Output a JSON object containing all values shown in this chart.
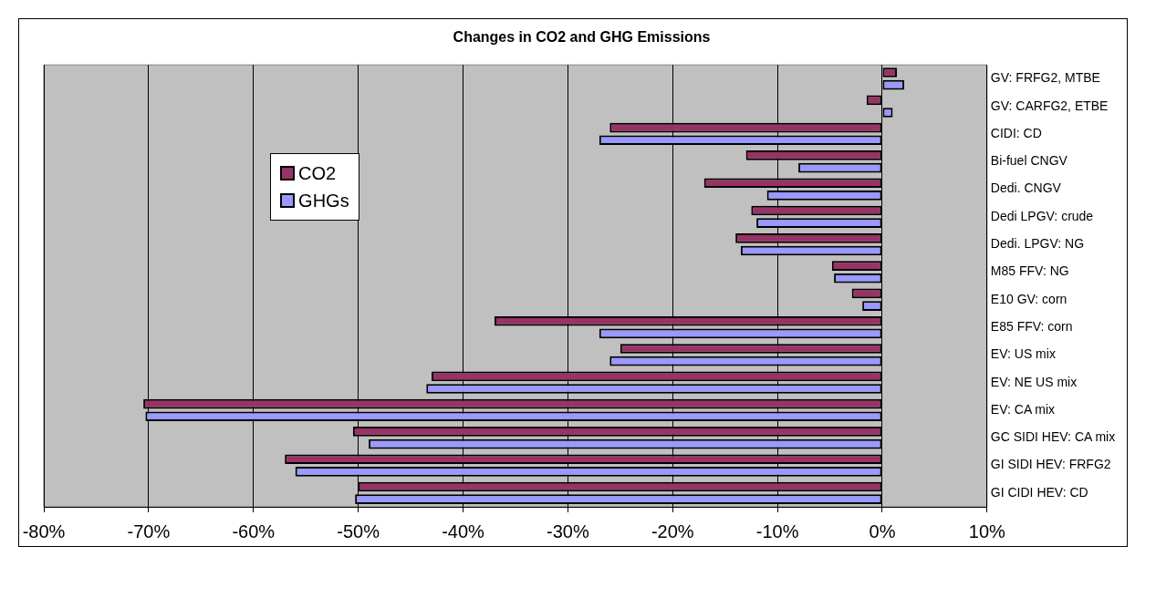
{
  "chart_data": {
    "type": "bar",
    "orientation": "horizontal",
    "title": "Changes in CO2 and GHG Emissions",
    "categories": [
      "GV: FRFG2, MTBE",
      "GV: CARFG2, ETBE",
      "CIDI: CD",
      "Bi-fuel CNGV",
      "Dedi. CNGV",
      "Dedi LPGV: crude",
      "Dedi. LPGV: NG",
      "M85 FFV: NG",
      "E10 GV: corn",
      "E85 FFV: corn",
      "EV: US mix",
      "EV: NE US mix",
      "EV: CA mix",
      "GC SIDI HEV: CA mix",
      "GI SIDI HEV: FRFG2",
      "GI CIDI HEV: CD"
    ],
    "series": [
      {
        "name": "CO2",
        "color": "#993366",
        "values": [
          1.4,
          -1.5,
          -26,
          -13,
          -17,
          -12.5,
          -14,
          -4.8,
          -2.9,
          -37,
          -25,
          -43,
          -70.5,
          -50.5,
          -57,
          -50
        ]
      },
      {
        "name": "GHGs",
        "color": "#9999ff",
        "values": [
          2.1,
          1,
          -27,
          -8,
          -11,
          -12,
          -13.5,
          -4.6,
          -1.9,
          -27,
          -26,
          -43.5,
          -70.3,
          -49,
          -56,
          -50.3
        ]
      }
    ],
    "xlim": [
      -80,
      10
    ],
    "xticks": [
      {
        "value": -80,
        "label": "-80%"
      },
      {
        "value": -70,
        "label": "-70%"
      },
      {
        "value": -60,
        "label": "-60%"
      },
      {
        "value": -50,
        "label": "-50%"
      },
      {
        "value": -40,
        "label": "-40%"
      },
      {
        "value": -30,
        "label": "-30%"
      },
      {
        "value": -20,
        "label": "-20%"
      },
      {
        "value": -10,
        "label": "-10%"
      },
      {
        "value": 0,
        "label": "0%"
      },
      {
        "value": 10,
        "label": "10%"
      }
    ],
    "grid": "x",
    "legend": "left"
  }
}
